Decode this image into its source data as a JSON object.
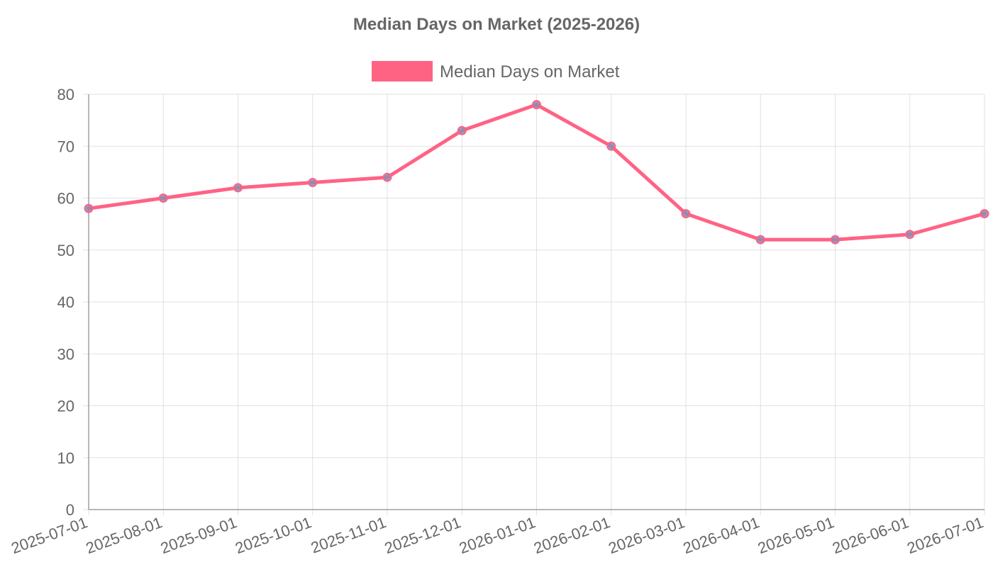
{
  "chart_data": {
    "type": "line",
    "title": "Median Days on Market (2025-2026)",
    "xlabel": "",
    "ylabel": "",
    "x": [
      "2025-07-01",
      "2025-08-01",
      "2025-09-01",
      "2025-10-01",
      "2025-11-01",
      "2025-12-01",
      "2026-01-01",
      "2026-02-01",
      "2026-03-01",
      "2026-04-01",
      "2026-05-01",
      "2026-06-01",
      "2026-07-01"
    ],
    "series": [
      {
        "name": "Median Days on Market",
        "values": [
          58,
          60,
          62,
          63,
          64,
          73,
          78,
          70,
          57,
          52,
          52,
          53,
          57
        ],
        "color": "#ff6384",
        "point_color": "#8c8cb4"
      }
    ],
    "ylim": [
      0,
      80
    ],
    "yticks": [
      "0",
      "10",
      "20",
      "30",
      "40",
      "50",
      "60",
      "70",
      "80"
    ],
    "grid": true,
    "legend": "top-center"
  }
}
